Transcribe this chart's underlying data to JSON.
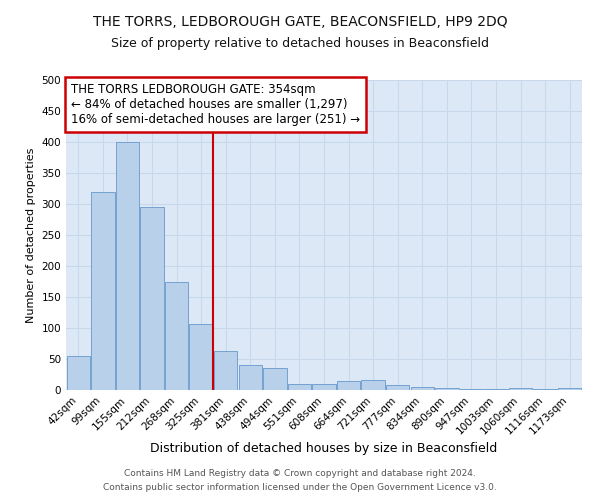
{
  "title": "THE TORRS, LEDBOROUGH GATE, BEACONSFIELD, HP9 2DQ",
  "subtitle": "Size of property relative to detached houses in Beaconsfield",
  "xlabel": "Distribution of detached houses by size in Beaconsfield",
  "ylabel": "Number of detached properties",
  "footer_line1": "Contains HM Land Registry data © Crown copyright and database right 2024.",
  "footer_line2": "Contains public sector information licensed under the Open Government Licence v3.0.",
  "categories": [
    "42sqm",
    "99sqm",
    "155sqm",
    "212sqm",
    "268sqm",
    "325sqm",
    "381sqm",
    "438sqm",
    "494sqm",
    "551sqm",
    "608sqm",
    "664sqm",
    "721sqm",
    "777sqm",
    "834sqm",
    "890sqm",
    "947sqm",
    "1003sqm",
    "1060sqm",
    "1116sqm",
    "1173sqm"
  ],
  "values": [
    55,
    320,
    400,
    295,
    175,
    107,
    63,
    40,
    35,
    10,
    10,
    15,
    16,
    8,
    5,
    3,
    1,
    1,
    3,
    1,
    4
  ],
  "bar_color": "#b8d0ea",
  "bar_edge_color": "#6699cc",
  "annotation_box_text": "THE TORRS LEDBOROUGH GATE: 354sqm\n← 84% of detached houses are smaller (1,297)\n16% of semi-detached houses are larger (251) →",
  "annotation_box_color": "#ffffff",
  "annotation_box_edge_color": "#cc0000",
  "vline_x": 5.5,
  "vline_color": "#cc0000",
  "grid_color": "#c8d8ea",
  "background_color": "#dce8f5",
  "ylim": [
    0,
    500
  ],
  "yticks": [
    0,
    50,
    100,
    150,
    200,
    250,
    300,
    350,
    400,
    450,
    500
  ],
  "title_fontsize": 10,
  "subtitle_fontsize": 9,
  "xlabel_fontsize": 9,
  "ylabel_fontsize": 8,
  "tick_fontsize": 7.5,
  "annotation_fontsize": 8.5,
  "footer_fontsize": 6.5
}
